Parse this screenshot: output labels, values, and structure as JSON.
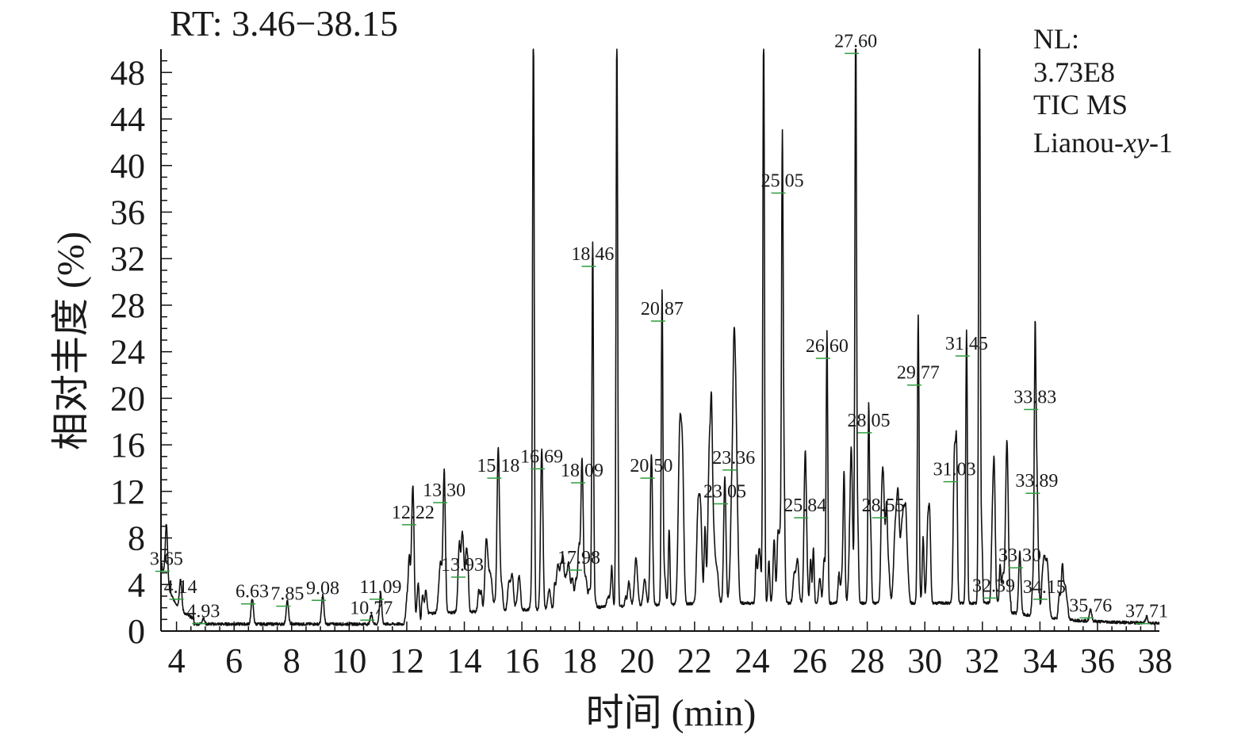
{
  "header": {
    "rt_range": "RT: 3.46−38.15"
  },
  "info": {
    "nl_label": "NL:",
    "nl_value": "3.73E8",
    "scan": "TIC MS",
    "sample_prefix": "Lianou-",
    "sample_italic": "xy",
    "sample_suffix": "-1"
  },
  "colors": {
    "trace": "#111111",
    "axis": "#111111",
    "marker": "#2e9e3e",
    "text": "#1a1a1a"
  },
  "chart_data": {
    "type": "line",
    "title": "RT: 3.46−38.15",
    "xlabel": "时间 (min)",
    "ylabel": "相对丰度 (%)",
    "xlim": [
      3.46,
      38.15
    ],
    "ylim": [
      0,
      50
    ],
    "x_ticks": [
      4,
      6,
      8,
      10,
      12,
      14,
      16,
      18,
      20,
      22,
      24,
      26,
      28,
      30,
      32,
      34,
      36,
      38
    ],
    "x_tick_labels": [
      "4",
      "6",
      "8",
      "10",
      "12",
      "14",
      "16",
      "18",
      "20",
      "22",
      "24",
      "26",
      "28",
      "30",
      "32",
      "34",
      "36",
      "38"
    ],
    "y_ticks": [
      0,
      4,
      8,
      12,
      16,
      20,
      24,
      28,
      32,
      36,
      40,
      44,
      48
    ],
    "y_tick_labels": [
      "0",
      "4",
      "8",
      "12",
      "16",
      "20",
      "24",
      "28",
      "32",
      "36",
      "40",
      "44",
      "48"
    ],
    "grid": false,
    "legend": "none",
    "peaks": [
      {
        "rt": 3.65,
        "y": 5.0,
        "label": "3.65"
      },
      {
        "rt": 4.14,
        "y": 2.6,
        "label": "4.14"
      },
      {
        "rt": 4.93,
        "y": 0.5,
        "label": "4.93"
      },
      {
        "rt": 6.63,
        "y": 2.2,
        "label": "6.63"
      },
      {
        "rt": 7.85,
        "y": 2.0,
        "label": "7.85"
      },
      {
        "rt": 9.08,
        "y": 2.5,
        "label": "9.08"
      },
      {
        "rt": 10.77,
        "y": 0.8,
        "label": "10.77"
      },
      {
        "rt": 11.09,
        "y": 2.6,
        "label": "11.09"
      },
      {
        "rt": 12.22,
        "y": 9.0,
        "label": "12.22"
      },
      {
        "rt": 13.3,
        "y": 10.9,
        "label": "13.30"
      },
      {
        "rt": 13.93,
        "y": 4.5,
        "label": "13.93"
      },
      {
        "rt": 15.18,
        "y": 13.0,
        "label": "15.18"
      },
      {
        "rt": 16.4,
        "y": 50,
        "label": ""
      },
      {
        "rt": 16.69,
        "y": 13.8,
        "label": "16.69"
      },
      {
        "rt": 17.98,
        "y": 5.1,
        "label": "17.98"
      },
      {
        "rt": 18.09,
        "y": 12.6,
        "label": "18.09"
      },
      {
        "rt": 18.46,
        "y": 31.2,
        "label": "18.46"
      },
      {
        "rt": 19.3,
        "y": 50,
        "label": ""
      },
      {
        "rt": 20.5,
        "y": 13.0,
        "label": "20.50"
      },
      {
        "rt": 20.87,
        "y": 26.5,
        "label": "20.87"
      },
      {
        "rt": 23.05,
        "y": 10.8,
        "label": "23.05"
      },
      {
        "rt": 23.36,
        "y": 13.7,
        "label": "23.36"
      },
      {
        "rt": 24.4,
        "y": 50,
        "label": ""
      },
      {
        "rt": 25.05,
        "y": 37.5,
        "label": "25.05"
      },
      {
        "rt": 25.84,
        "y": 9.6,
        "label": "25.84"
      },
      {
        "rt": 26.6,
        "y": 23.3,
        "label": "26.60"
      },
      {
        "rt": 27.6,
        "y": 49.5,
        "label": "27.60"
      },
      {
        "rt": 28.05,
        "y": 16.9,
        "label": "28.05"
      },
      {
        "rt": 28.55,
        "y": 9.6,
        "label": "28.55"
      },
      {
        "rt": 29.77,
        "y": 21.0,
        "label": "29.77"
      },
      {
        "rt": 31.03,
        "y": 12.7,
        "label": "31.03"
      },
      {
        "rt": 31.45,
        "y": 23.5,
        "label": "31.45"
      },
      {
        "rt": 31.9,
        "y": 50,
        "label": ""
      },
      {
        "rt": 32.39,
        "y": 2.7,
        "label": "32.39"
      },
      {
        "rt": 33.3,
        "y": 5.3,
        "label": "33.30"
      },
      {
        "rt": 33.83,
        "y": 18.9,
        "label": "33.83"
      },
      {
        "rt": 33.89,
        "y": 11.7,
        "label": "33.89"
      },
      {
        "rt": 34.15,
        "y": 2.6,
        "label": "34.15"
      },
      {
        "rt": 35.76,
        "y": 1.0,
        "label": "35.76"
      },
      {
        "rt": 37.71,
        "y": 0.5,
        "label": "37.71"
      }
    ]
  }
}
